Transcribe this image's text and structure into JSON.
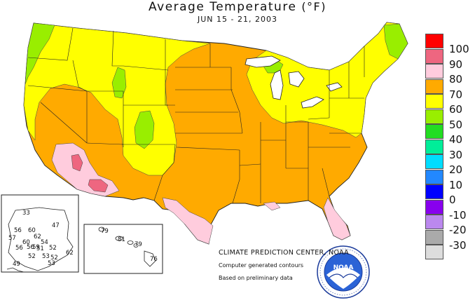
{
  "title": "Average Temperature",
  "unit_label": "(°F)",
  "subtitle": "JUN 15 - 21, 2003",
  "credits": {
    "center": "CLIMATE PREDICTION CENTER, NOAA",
    "line1": "Computer generated contours",
    "line2": "Based on preliminary data"
  },
  "logo_text": "NOAA",
  "legend": [
    {
      "label": "100",
      "color": "#ff0000"
    },
    {
      "label": "90",
      "color": "#ee6680"
    },
    {
      "label": "80",
      "color": "#ffccdd"
    },
    {
      "label": "70",
      "color": "#ffaa00"
    },
    {
      "label": "60",
      "color": "#ffff00"
    },
    {
      "label": "50",
      "color": "#99ee00"
    },
    {
      "label": "40",
      "color": "#22dd22"
    },
    {
      "label": "30",
      "color": "#00ee99"
    },
    {
      "label": "20",
      "color": "#00ddff"
    },
    {
      "label": "10",
      "color": "#2288ff"
    },
    {
      "label": "0",
      "color": "#0000ff"
    },
    {
      "label": "-10",
      "color": "#8800ee"
    },
    {
      "label": "-20",
      "color": "#bb88ee"
    },
    {
      "label": "-30",
      "color": "#aaaaaa"
    },
    {
      "label": "",
      "color": "#dddddd"
    }
  ],
  "alaska_stations": [
    "33",
    "47",
    "56",
    "60",
    "62",
    "57",
    "60",
    "54",
    "56",
    "56",
    "59",
    "51",
    "62",
    "52",
    "52",
    "53",
    "49",
    "52",
    "53"
  ],
  "hawaii_stations": [
    "79",
    "81",
    "79",
    "76"
  ]
}
